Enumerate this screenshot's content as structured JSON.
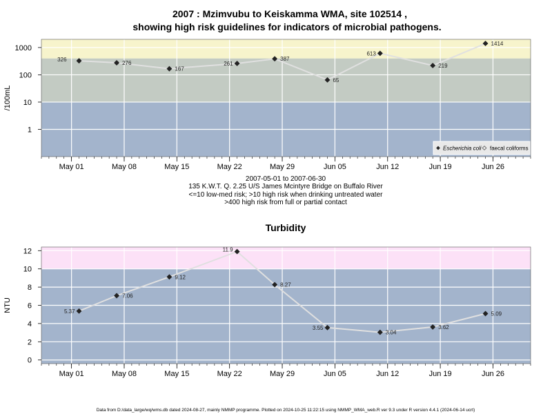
{
  "title_line1": "2007 : Mzimvubu to Keiskamma WMA, site 102514 ,",
  "title_line2": "showing high risk guidelines for indicators of microbial pathogens.",
  "subtitle_lines": [
    "2007-05-01 to 2007-06-30",
    "135 K.W.T. Q. 2.25 U/S James Mcintyre Bridge on Buffalo River",
    "<=10 low-med risk; >10 high risk when drinking untreated water",
    ">400 high risk from full or partial contact"
  ],
  "footer": "Data from D:/data_large/wq/wms.db dated 2024-08-27, mainly NMMP programme. Plotted on 2024-10-25 11:22:15 using NMMP_WMA_web.R ver 9.3 under R version 4.4.1 (2024-06-14 ucrt)",
  "colors": {
    "band_low": "#a3b4cc",
    "band_mid": "#c3cbc3",
    "band_high": "#f7f4cc",
    "band_turb_high": "#fce1f7",
    "line": "#e0e0e0",
    "grid": "#ffffff",
    "point": "#222222"
  },
  "chart_data": [
    {
      "type": "line",
      "title": "",
      "ylabel": "/100mL",
      "y_scale": "log",
      "ylim": [
        0.1,
        2000
      ],
      "xlim": [
        "2007-04-27",
        "2007-07-01"
      ],
      "x_ticks": [
        "May 01",
        "May 08",
        "May 15",
        "May 22",
        "May 29",
        "Jun 05",
        "Jun 12",
        "Jun 19",
        "Jun 26"
      ],
      "y_ticks": [
        "1",
        "10",
        "100",
        "1000"
      ],
      "risk_bands": [
        {
          "from": 0.1,
          "to": 10,
          "color": "#a3b4cc"
        },
        {
          "from": 10,
          "to": 400,
          "color": "#c3cbc3"
        },
        {
          "from": 400,
          "to": 2000,
          "color": "#f7f4cc"
        }
      ],
      "legend": {
        "position": "bottom-right",
        "items": [
          "Escherichia coli",
          "faecal coliforms"
        ]
      },
      "series": [
        {
          "name": "Escherichia coli",
          "x": [
            "2007-05-02",
            "2007-05-07",
            "2007-05-14",
            "2007-05-23",
            "2007-05-28",
            "2007-06-04",
            "2007-06-11",
            "2007-06-18",
            "2007-06-25"
          ],
          "y": [
            326,
            276,
            167,
            261,
            387,
            65,
            613,
            219,
            1414
          ],
          "labels": [
            "326",
            "276",
            "167",
            "261",
            "387",
            "65",
            "613",
            "219",
            "1414"
          ]
        }
      ]
    },
    {
      "type": "line",
      "title": "Turbidity",
      "ylabel": "NTU",
      "ylim": [
        -0.4,
        12.4
      ],
      "xlim": [
        "2007-04-27",
        "2007-07-01"
      ],
      "x_ticks": [
        "May 01",
        "May 08",
        "May 15",
        "May 22",
        "May 29",
        "Jun 05",
        "Jun 12",
        "Jun 19",
        "Jun 26"
      ],
      "y_ticks": [
        "0",
        "2",
        "4",
        "6",
        "8",
        "10",
        "12"
      ],
      "risk_bands": [
        {
          "from": -0.4,
          "to": 10,
          "color": "#a3b4cc"
        },
        {
          "from": 10,
          "to": 12.4,
          "color": "#fce1f7"
        }
      ],
      "series": [
        {
          "name": "",
          "x": [
            "2007-05-02",
            "2007-05-07",
            "2007-05-14",
            "2007-05-23",
            "2007-05-28",
            "2007-06-04",
            "2007-06-11",
            "2007-06-18",
            "2007-06-25"
          ],
          "y": [
            5.37,
            7.06,
            9.12,
            11.9,
            8.27,
            3.55,
            3.04,
            3.62,
            5.09
          ],
          "labels": [
            "5.37",
            "7.06",
            "9.12",
            "11.9",
            "8.27",
            "3.55",
            "3.04",
            "3.62",
            "5.09"
          ]
        }
      ]
    }
  ]
}
